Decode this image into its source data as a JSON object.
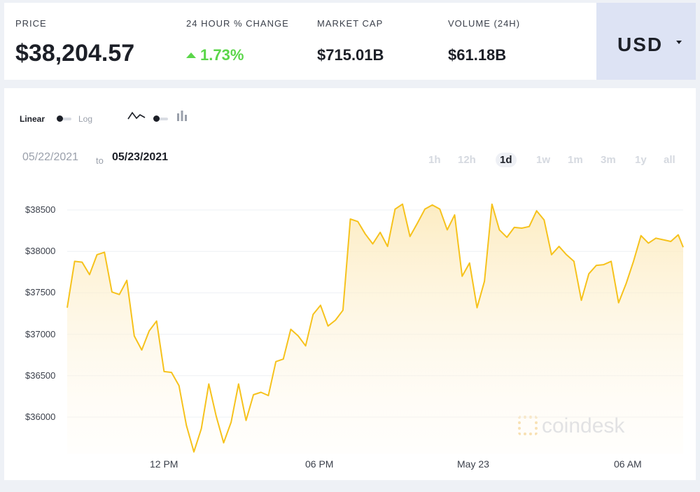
{
  "stats": {
    "price_label": "PRICE",
    "price_value": "$38,204.57",
    "change_label": "24 HOUR % CHANGE",
    "change_value": "1.73%",
    "mcap_label": "MARKET CAP",
    "mcap_value": "$715.01B",
    "volume_label": "VOLUME (24H)",
    "volume_value": "$61.18B"
  },
  "currency": {
    "label": "USD"
  },
  "controls": {
    "linear_label": "Linear",
    "log_label": "Log",
    "line_icon": "line-chart-icon",
    "bar_icon": "bar-chart-icon"
  },
  "dates": {
    "from": "05/22/2021",
    "to_word": "to",
    "to": "05/23/2021"
  },
  "ranges": [
    "1h",
    "12h",
    "1d",
    "1w",
    "1m",
    "3m",
    "1y",
    "all"
  ],
  "active_range": "1d",
  "brand": {
    "name": "coindesk"
  },
  "colors": {
    "line": "#f6c21c",
    "fill_top": "#fce9b8",
    "positive": "#5bd64a"
  },
  "chart_data": {
    "type": "area",
    "title": "",
    "xlabel": "",
    "ylabel": "",
    "y_ticks": [
      "$38500",
      "$38000",
      "$37500",
      "$37000",
      "$36500",
      "$36000"
    ],
    "y_tick_values": [
      38500,
      38000,
      37500,
      37000,
      36500,
      36000
    ],
    "ylim": [
      35550,
      38600
    ],
    "x_ticks": [
      "12 PM",
      "06 PM",
      "May 23",
      "06 AM"
    ],
    "x_tick_hours": [
      12,
      18,
      24,
      30
    ],
    "xlim_hours": [
      7.8,
      32.6
    ],
    "grid": true,
    "series": [
      {
        "x_hours": [
          7.8,
          8.1,
          8.4,
          8.7,
          9.0,
          9.3,
          9.6,
          9.9,
          10.2,
          10.5,
          10.8,
          11.1,
          11.4,
          11.7,
          12.0,
          12.3,
          12.6,
          12.9,
          13.2,
          13.5,
          13.8,
          14.1,
          14.4,
          14.7,
          15.0,
          15.3,
          15.6,
          15.9,
          16.2,
          16.5,
          16.8,
          17.1,
          17.4,
          17.7,
          18.0,
          18.3,
          18.6,
          18.9,
          19.2,
          19.5,
          19.8,
          20.1,
          20.4,
          20.7,
          21.0,
          21.3,
          21.6,
          21.9,
          22.2,
          22.5,
          22.8,
          23.1,
          23.4,
          23.7,
          24.0,
          24.3,
          24.6,
          24.9,
          25.2,
          25.5,
          25.8,
          26.1,
          26.4,
          26.7,
          27.0,
          27.3,
          27.6,
          27.9,
          28.2,
          28.5,
          28.8,
          29.1,
          29.4,
          29.7,
          30.0,
          30.3,
          30.6,
          30.9,
          31.2,
          31.5,
          31.8,
          32.1,
          32.4,
          32.6
        ],
        "values": [
          37320,
          37880,
          37870,
          37720,
          37960,
          37990,
          37510,
          37480,
          37650,
          36980,
          36810,
          37040,
          37160,
          36550,
          36540,
          36380,
          35900,
          35580,
          35860,
          36400,
          36010,
          35690,
          35940,
          36400,
          35960,
          36270,
          36300,
          36260,
          36670,
          36700,
          37060,
          36980,
          36860,
          37240,
          37350,
          37100,
          37170,
          37290,
          38390,
          38360,
          38210,
          38090,
          38230,
          38060,
          38510,
          38570,
          38180,
          38340,
          38510,
          38560,
          38510,
          38260,
          38440,
          37700,
          37860,
          37320,
          37640,
          38570,
          38260,
          38170,
          38290,
          38280,
          38300,
          38490,
          38380,
          37960,
          38060,
          37960,
          37880,
          37410,
          37730,
          37830,
          37840,
          37880,
          37380,
          37610,
          37880,
          38190,
          38100,
          38160,
          38140,
          38120,
          38200,
          38050
        ]
      }
    ]
  }
}
